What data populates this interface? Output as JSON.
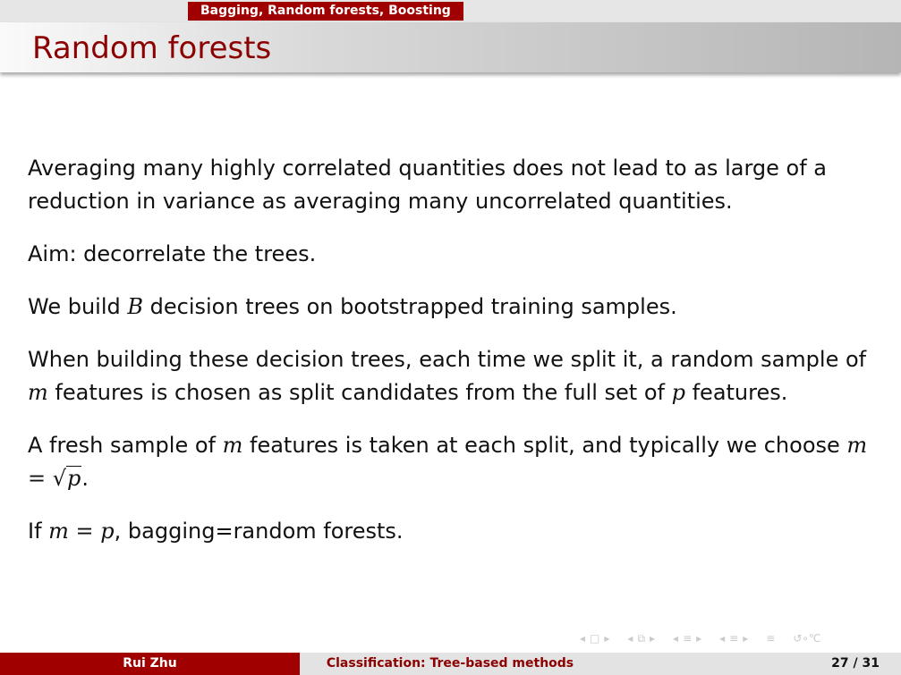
{
  "header": {
    "section": "Bagging, Random forests, Boosting",
    "title": "Random forests"
  },
  "body": {
    "p1": "Averaging many highly correlated quantities does not lead to as large of a reduction in variance as averaging many uncorrelated quantities.",
    "p2": "Aim: decorrelate the trees.",
    "p3": {
      "before": "We build ",
      "var_b": "B",
      "after": " decision trees on bootstrapped training samples."
    },
    "p4": {
      "t1": "When building these decision trees, each time we split it, a random sample of ",
      "var_m": "m",
      "t2": " features is chosen as split candidates from the full set of ",
      "var_p": "p",
      "t3": " features."
    },
    "p5": {
      "t1": "A fresh sample of ",
      "var_m": "m",
      "t2": " features is taken at each split, and typically we choose ",
      "var_m2": "m",
      "eq": " = ",
      "sqrt_sign": "√",
      "radicand": "p",
      "t3": "."
    },
    "p6": {
      "t1": "If ",
      "var_m": "m",
      "eq": " = ",
      "var_p": "p",
      "t2": ", bagging=random forests."
    }
  },
  "navigation": {
    "icons": [
      "nav-frame-prev-icon",
      "nav-frame-icon",
      "nav-frame-next-icon",
      "nav-subsection-prev-icon",
      "nav-subsection-icon",
      "nav-subsection-next-icon",
      "nav-section-prev-icon",
      "nav-section-icon",
      "nav-section-next-icon",
      "nav-doc-icon",
      "nav-search-icon"
    ]
  },
  "footer": {
    "author": "Rui Zhu",
    "talk_title": "Classification: Tree-based methods",
    "page": "27 / 31"
  },
  "colors": {
    "accent": "#a00000",
    "title_text": "#8b0000",
    "footer_gray": "#e3e3e3"
  }
}
